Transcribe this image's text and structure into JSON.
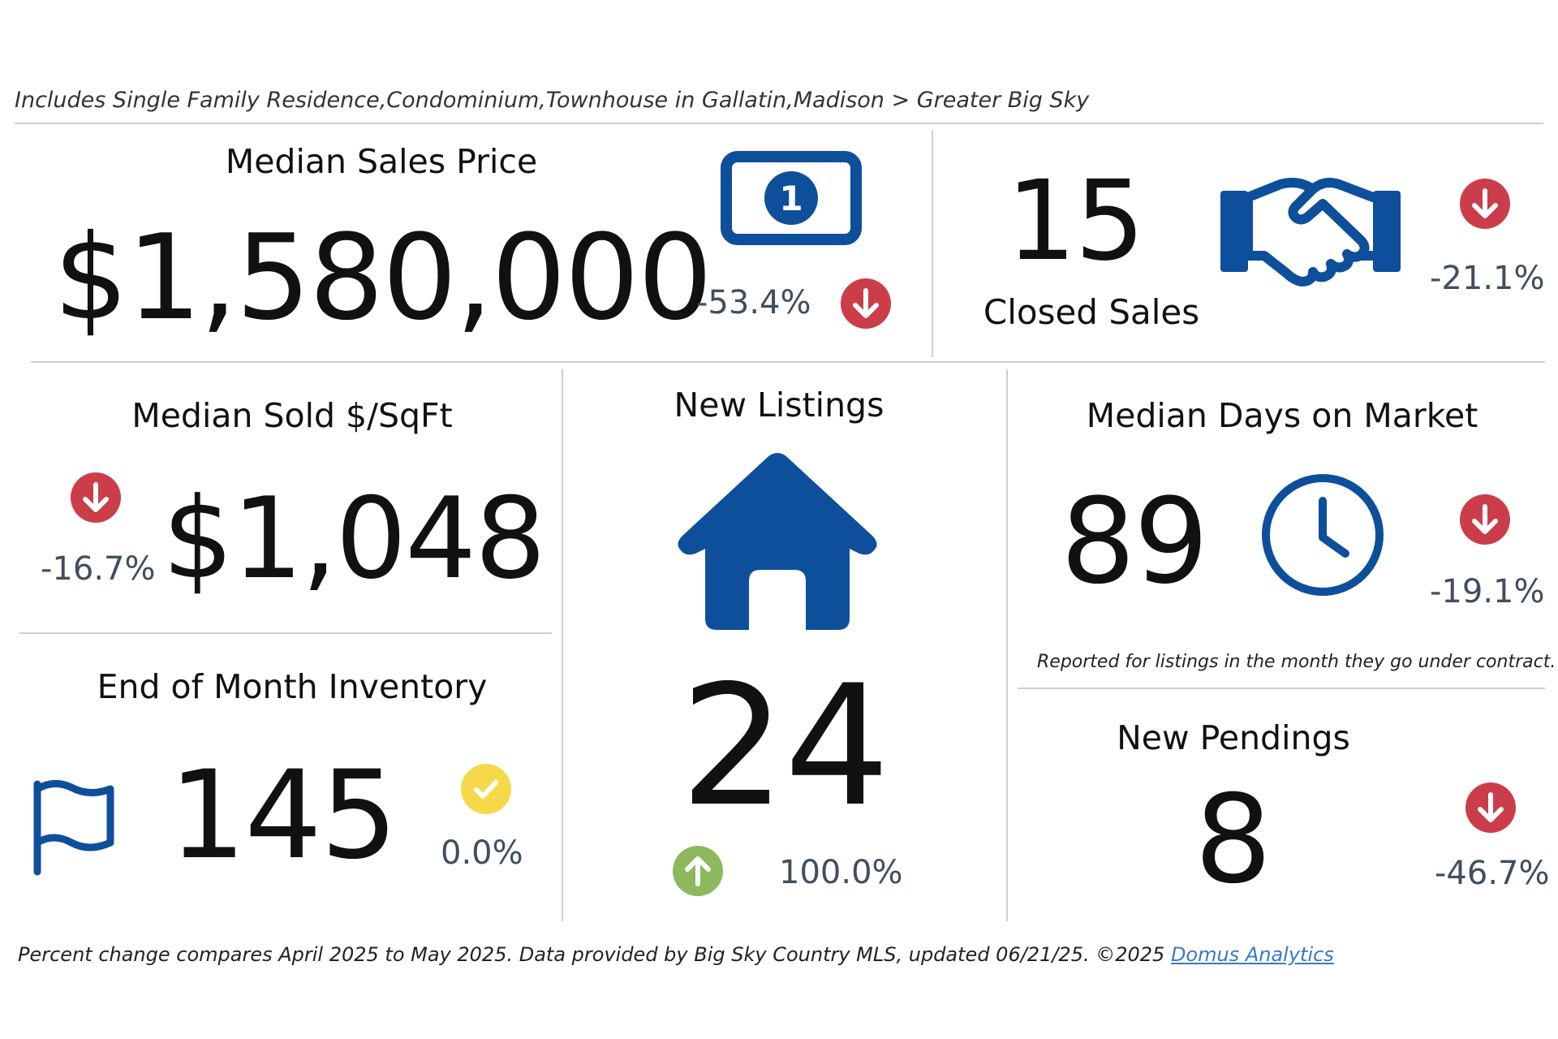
{
  "subtitle": "Includes Single Family Residence,Condominium,Townhouse in Gallatin,Madison > Greater Big Sky",
  "colors": {
    "icon_blue": "#0e4f9b",
    "down_red": "#cc3d4a",
    "up_green": "#8db85c",
    "neutral_yellow": "#f5d94a",
    "pct_gray": "#3f4f5f"
  },
  "median_sales_price": {
    "title": "Median Sales Price",
    "value": "$1,580,000",
    "change": "-53.4%",
    "direction": "down",
    "icon": "dollar-bill-icon"
  },
  "closed_sales": {
    "title": "Closed Sales",
    "value": "15",
    "change": "-21.1%",
    "direction": "down",
    "icon": "handshake-icon"
  },
  "median_sold_sqft": {
    "title": "Median Sold $/SqFt",
    "value": "$1,048",
    "change": "-16.7%",
    "direction": "down"
  },
  "new_listings": {
    "title": "New Listings",
    "value": "24",
    "change": "100.0%",
    "direction": "up",
    "icon": "house-icon"
  },
  "median_days_on_market": {
    "title": "Median Days on Market",
    "value": "89",
    "change": "-19.1%",
    "direction": "down",
    "icon": "clock-icon",
    "note": "Reported for listings in the month they go under contract."
  },
  "end_of_month_inventory": {
    "title": "End of Month Inventory",
    "value": "145",
    "change": "0.0%",
    "direction": "neutral",
    "icon": "flag-icon"
  },
  "new_pendings": {
    "title": "New Pendings",
    "value": "8",
    "change": "-46.7%",
    "direction": "down"
  },
  "footer": {
    "text": "Percent change compares April 2025 to May 2025.  Data provided by Big Sky Country MLS, updated 06/21/25. ©2025 ",
    "link_text": "Domus Analytics"
  }
}
